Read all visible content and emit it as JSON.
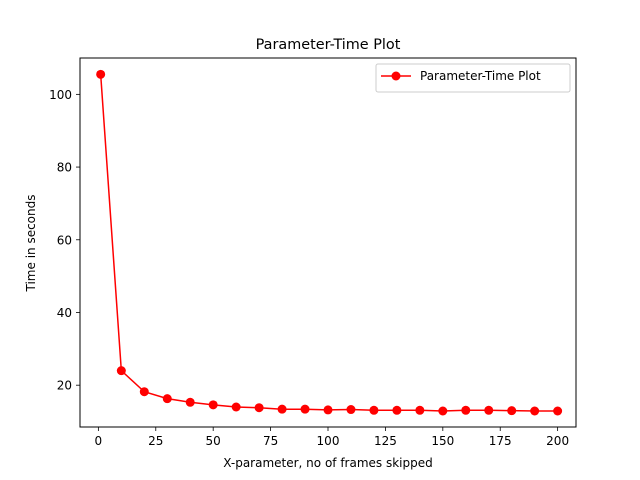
{
  "chart_data": {
    "type": "line",
    "title": "Parameter-Time Plot",
    "xlabel": "X-parameter, no of frames skipped",
    "ylabel": "Time in seconds",
    "xlim": [
      -8,
      208
    ],
    "ylim": [
      8.5,
      110
    ],
    "xticks": [
      0,
      25,
      50,
      75,
      100,
      125,
      150,
      175,
      200
    ],
    "yticks": [
      20,
      40,
      60,
      80,
      100
    ],
    "grid": false,
    "legend": "top-right",
    "series": [
      {
        "name": "Parameter-Time Plot",
        "color": "#ff0000",
        "marker": "circle",
        "x": [
          1,
          10,
          20,
          30,
          40,
          50,
          60,
          70,
          80,
          90,
          100,
          110,
          120,
          130,
          140,
          150,
          160,
          170,
          180,
          190,
          200
        ],
        "y": [
          105.5,
          24.0,
          18.2,
          16.3,
          15.3,
          14.6,
          14.0,
          13.8,
          13.4,
          13.4,
          13.2,
          13.3,
          13.1,
          13.1,
          13.1,
          12.9,
          13.1,
          13.1,
          13.0,
          12.9,
          12.9
        ]
      }
    ]
  }
}
